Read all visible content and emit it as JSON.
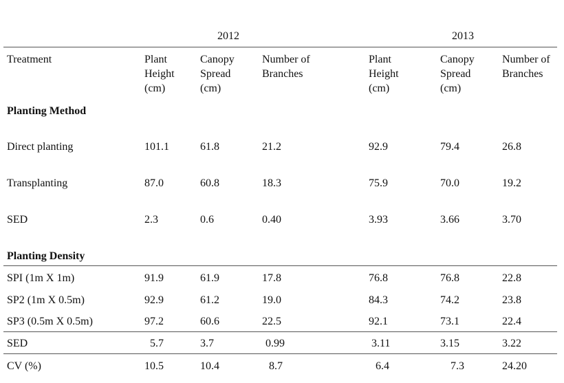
{
  "years": [
    "2012",
    "2013"
  ],
  "header": {
    "treatment": "Treatment",
    "cols_2012": [
      [
        "Plant",
        "Height",
        "(cm)"
      ],
      [
        "Canopy",
        "Spread",
        "(cm)"
      ],
      [
        "Number of",
        "Branches"
      ]
    ],
    "cols_2013": [
      [
        "Plant",
        "Height",
        "(cm)"
      ],
      [
        "Canopy",
        "Spread",
        "(cm)"
      ],
      [
        "Number of",
        "Branches"
      ]
    ]
  },
  "sections": [
    {
      "title": "Planting Method",
      "rows": [
        {
          "label": "Direct planting",
          "values": [
            "101.1",
            "61.8",
            "21.2",
            "92.9",
            "79.4",
            "26.8"
          ]
        },
        {
          "label": "Transplanting",
          "values": [
            "87.0",
            "60.8",
            "18.3",
            "75.9",
            "70.0",
            "19.2"
          ]
        },
        {
          "label": "SED",
          "values": [
            "2.3",
            "0.6",
            "0.40",
            "3.93",
            "3.66",
            "3.70"
          ]
        }
      ]
    },
    {
      "title": "Planting Density",
      "rows": [
        {
          "label": "SPI (1m X 1m)",
          "values": [
            "91.9",
            "61.9",
            "17.8",
            "76.8",
            "76.8",
            "22.8"
          ]
        },
        {
          "label": "SP2 (1m X 0.5m)",
          "values": [
            "92.9",
            "61.2",
            "19.0",
            "84.3",
            "74.2",
            "23.8"
          ]
        },
        {
          "label": "SP3 (0.5m X 0.5m)",
          "values": [
            "97.2",
            "60.6",
            "22.5",
            "92.1",
            "73.1",
            "22.4"
          ]
        },
        {
          "label": "SED",
          "values": [
            "5.7",
            "3.7",
            "0.99",
            "3.11",
            "3.15",
            "3.22"
          ]
        },
        {
          "label": "CV (%)",
          "values": [
            "10.5",
            "10.4",
            "8.7",
            "6.4",
            "7.3",
            "24.20"
          ]
        }
      ]
    }
  ]
}
